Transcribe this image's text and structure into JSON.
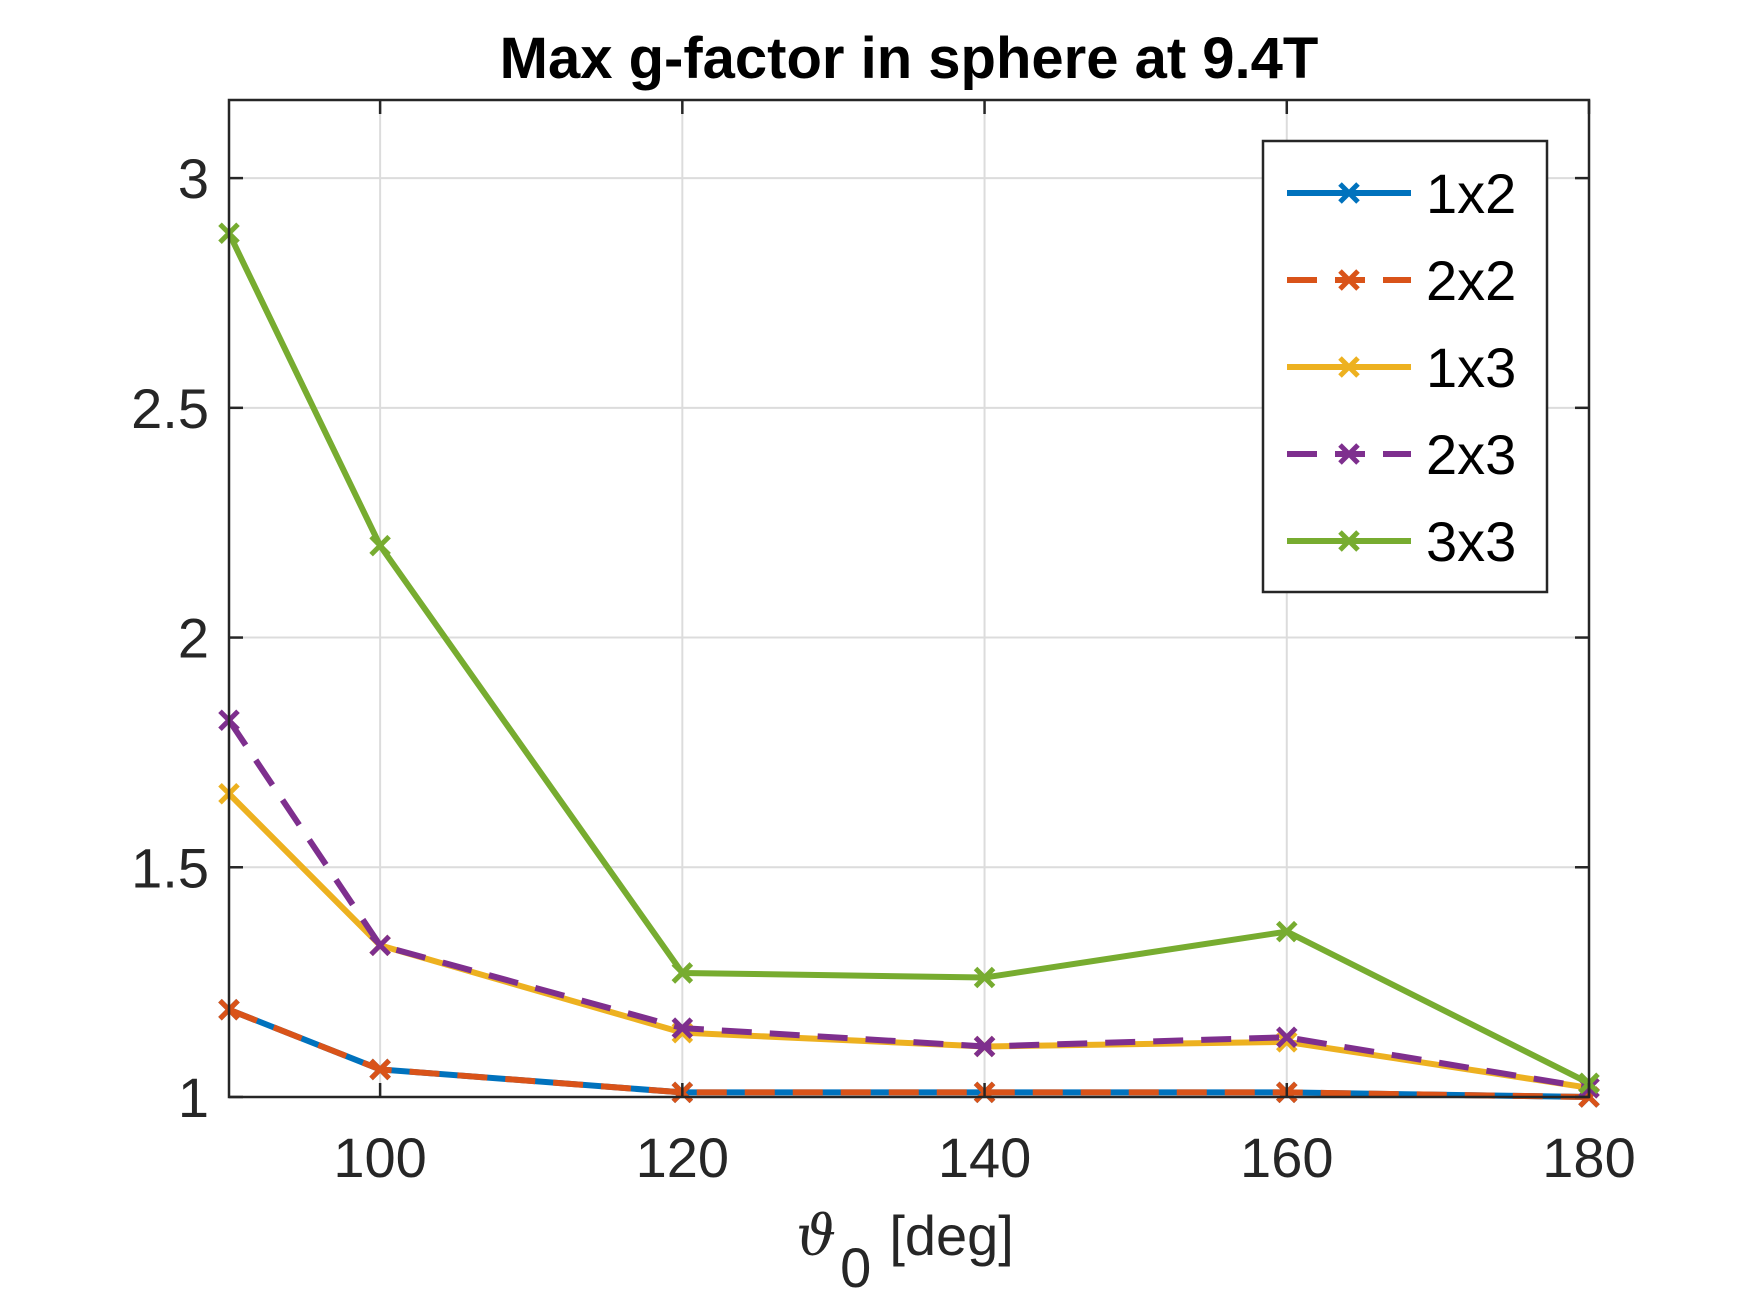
{
  "chart_data": {
    "type": "line",
    "title": "Max g-factor in sphere at 9.4T",
    "xlabel_symbol": "ϑ",
    "xlabel_subscript": "0",
    "xlabel_unit": "[deg]",
    "ylabel": "",
    "x": [
      90,
      100,
      120,
      140,
      160,
      180
    ],
    "xlim": [
      90,
      180
    ],
    "ylim": [
      1,
      3.17
    ],
    "xticks": [
      100,
      120,
      140,
      160,
      180
    ],
    "xtick_labels": [
      "100",
      "120",
      "140",
      "160",
      "180"
    ],
    "yticks": [
      1,
      1.5,
      2,
      2.5,
      3
    ],
    "ytick_labels": [
      "1",
      "1.5",
      "2",
      "2.5",
      "3"
    ],
    "grid": true,
    "legend_position": "top-right",
    "series": [
      {
        "name": "1x2",
        "color": "#0072BD",
        "dash": "solid",
        "values": [
          1.19,
          1.06,
          1.01,
          1.01,
          1.01,
          1.0
        ]
      },
      {
        "name": "2x2",
        "color": "#D95319",
        "dash": "dashed",
        "values": [
          1.19,
          1.06,
          1.01,
          1.01,
          1.01,
          1.0
        ]
      },
      {
        "name": "1x3",
        "color": "#EDB120",
        "dash": "solid",
        "values": [
          1.66,
          1.33,
          1.14,
          1.11,
          1.12,
          1.02
        ]
      },
      {
        "name": "2x3",
        "color": "#7E2F8E",
        "dash": "dashed",
        "values": [
          1.82,
          1.33,
          1.15,
          1.11,
          1.13,
          1.02
        ]
      },
      {
        "name": "3x3",
        "color": "#77AC30",
        "dash": "solid",
        "values": [
          2.88,
          2.2,
          1.27,
          1.26,
          1.36,
          1.03
        ]
      }
    ]
  }
}
